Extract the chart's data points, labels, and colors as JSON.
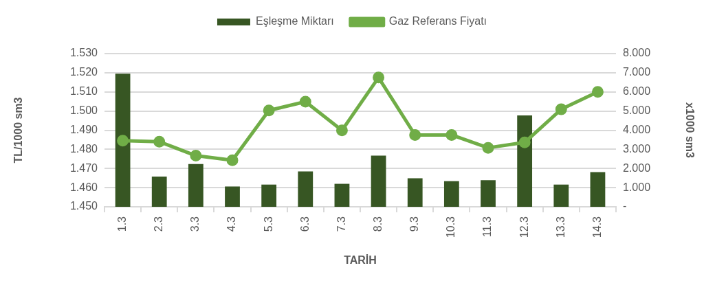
{
  "chart_data": {
    "type": "bar",
    "xlabel": "TARİH",
    "ylabel": "TL/1000 sm3",
    "y2label": "x1000 sm3",
    "categories": [
      "1.3",
      "2.3",
      "3.3",
      "4.3",
      "5.3",
      "6.3",
      "7.3",
      "8.3",
      "9.3",
      "10.3",
      "11.3",
      "12.3",
      "13.3",
      "14.3"
    ],
    "series": [
      {
        "name": "Eşleşme Miktarı",
        "axis": "y2",
        "color": "#375623",
        "values": [
          6.95,
          1.58,
          2.23,
          1.06,
          1.16,
          1.85,
          1.2,
          2.67,
          1.49,
          1.34,
          1.39,
          4.77,
          1.16,
          1.81
        ]
      },
      {
        "name": "Gaz Referans Fiyatı",
        "type": "line",
        "color": "#70ad47",
        "values": [
          1.4845,
          1.484,
          1.4767,
          1.4743,
          1.5003,
          1.5049,
          1.4899,
          1.5175,
          1.4875,
          1.4875,
          1.4808,
          1.4836,
          1.5009,
          1.51
        ]
      }
    ],
    "ylim": [
      1.45,
      1.53
    ],
    "yticks": [
      {
        "value": 1.45,
        "label": "1.450"
      },
      {
        "value": 1.46,
        "label": "1.460"
      },
      {
        "value": 1.47,
        "label": "1.470"
      },
      {
        "value": 1.48,
        "label": "1.480"
      },
      {
        "value": 1.49,
        "label": "1.490"
      },
      {
        "value": 1.5,
        "label": "1.500"
      },
      {
        "value": 1.51,
        "label": "1.510"
      },
      {
        "value": 1.52,
        "label": "1.520"
      },
      {
        "value": 1.53,
        "label": "1.530"
      }
    ],
    "y2lim": [
      0,
      8
    ],
    "y2ticks": [
      {
        "value": 0,
        "label": "-"
      },
      {
        "value": 1,
        "label": "1.000"
      },
      {
        "value": 2,
        "label": "2.000"
      },
      {
        "value": 3,
        "label": "3.000"
      },
      {
        "value": 4,
        "label": "4.000"
      },
      {
        "value": 5,
        "label": "5.000"
      },
      {
        "value": 6,
        "label": "6.000"
      },
      {
        "value": 7,
        "label": "7.000"
      },
      {
        "value": 8,
        "label": "8.000"
      }
    ],
    "grid": "y",
    "legend": "top",
    "marker": "circle"
  }
}
